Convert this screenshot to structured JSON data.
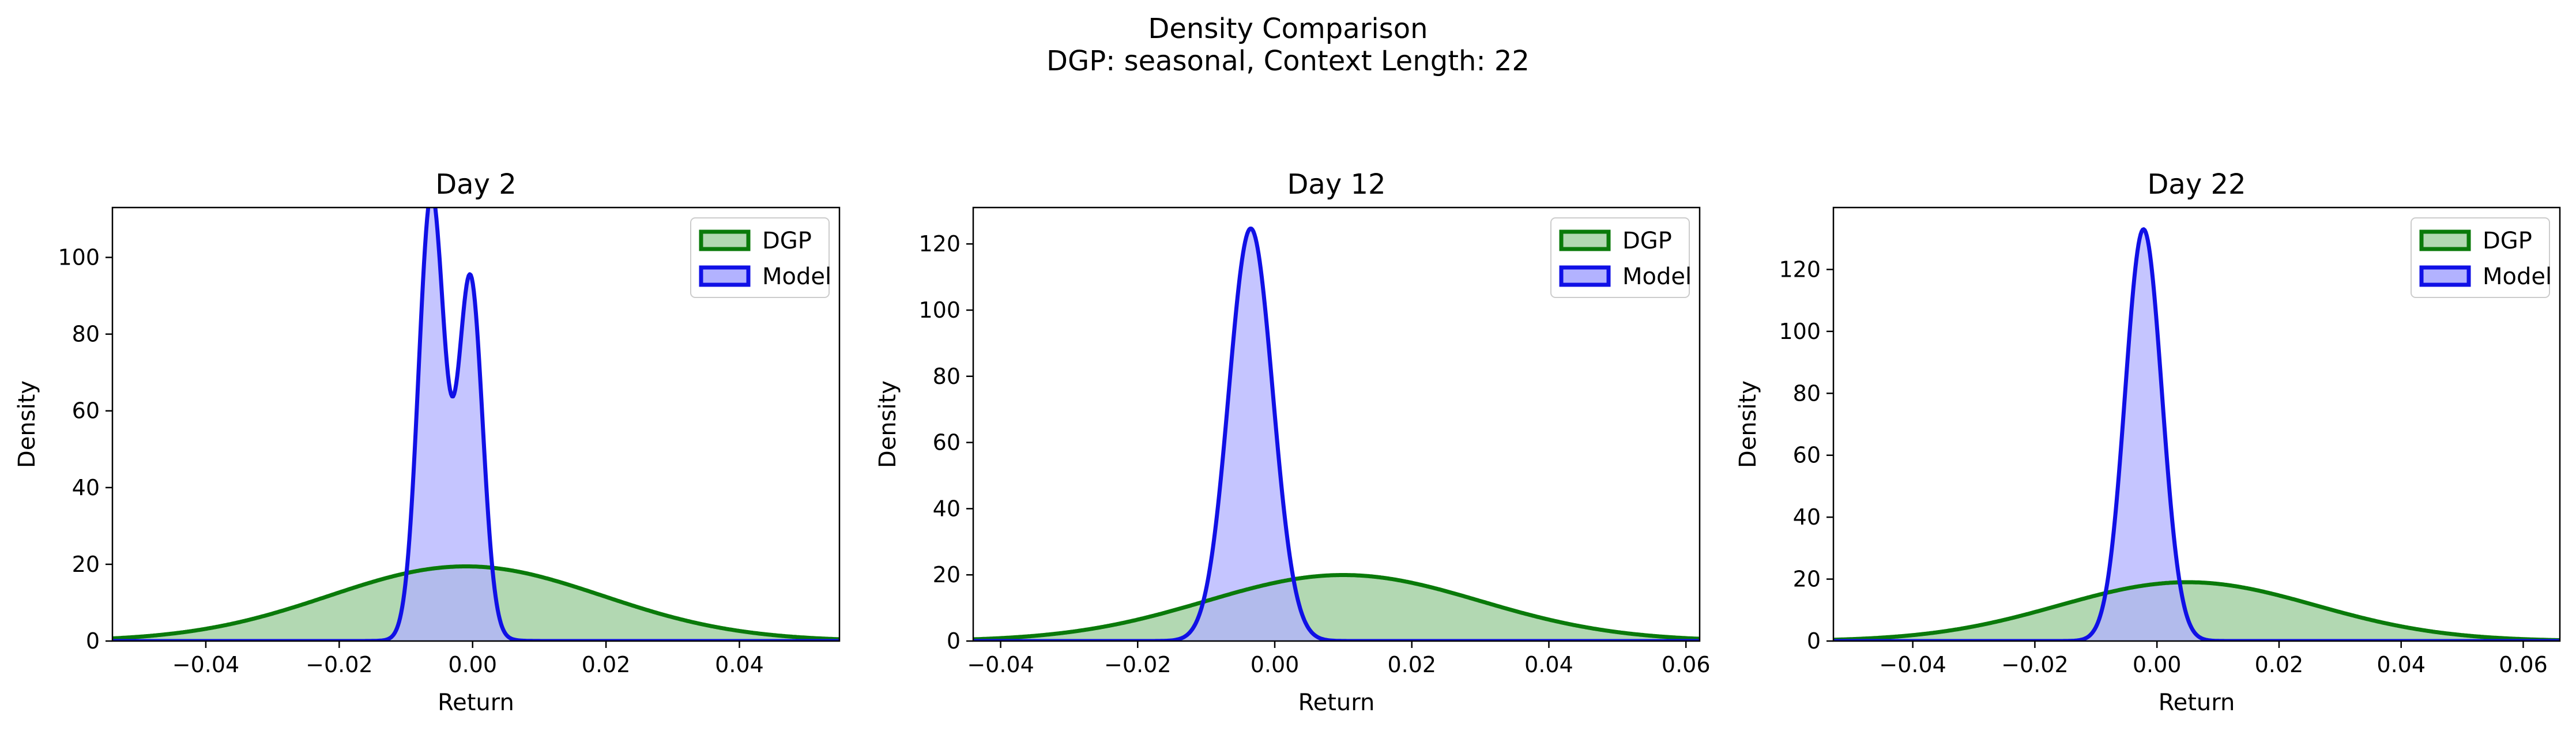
{
  "figure": {
    "title_line1": "Density Comparison",
    "title_line2": "DGP: seasonal, Context Length: 22"
  },
  "colors": {
    "dgp_line": "#0a7a0a",
    "dgp_fill": "#b2d8b2",
    "model_line": "#1010e6",
    "model_fill": "#b2b2ff",
    "overlap_fill": "#7a8fc8"
  },
  "chart_data": [
    {
      "type": "area",
      "title": "Day 2",
      "xlabel": "Return",
      "ylabel": "Density",
      "xlim": [
        -0.054,
        0.055
      ],
      "ylim": [
        0,
        113
      ],
      "xticks": [
        -0.04,
        -0.02,
        0.0,
        0.02,
        0.04
      ],
      "xtick_labels": [
        "−0.04",
        "−0.02",
        "0.00",
        "0.02",
        "0.04"
      ],
      "yticks": [
        0,
        20,
        40,
        60,
        80,
        100
      ],
      "legend": {
        "position": "top-right",
        "entries": [
          "DGP",
          "Model"
        ]
      },
      "series": [
        {
          "name": "DGP",
          "kind": "mixture",
          "components": [
            {
              "mean": -0.001,
              "sd": 0.0205,
              "weight": 1.0
            }
          ]
        },
        {
          "name": "Model",
          "kind": "mixture",
          "components": [
            {
              "mean": -0.0062,
              "sd": 0.0019,
              "weight": 0.53
            },
            {
              "mean": -0.0003,
              "sd": 0.0018,
              "weight": 0.4
            },
            {
              "mean": -0.003,
              "sd": 0.0035,
              "weight": 0.07
            }
          ]
        }
      ]
    },
    {
      "type": "area",
      "title": "Day 12",
      "xlabel": "Return",
      "ylabel": "Density",
      "xlim": [
        -0.044,
        0.062
      ],
      "ylim": [
        0,
        131
      ],
      "xticks": [
        -0.04,
        -0.02,
        0.0,
        0.02,
        0.04,
        0.06
      ],
      "xtick_labels": [
        "−0.04",
        "−0.02",
        "0.00",
        "0.02",
        "0.04",
        "0.06"
      ],
      "yticks": [
        0,
        20,
        40,
        60,
        80,
        100,
        120
      ],
      "legend": {
        "position": "top-right",
        "entries": [
          "DGP",
          "Model"
        ]
      },
      "series": [
        {
          "name": "DGP",
          "kind": "mixture",
          "components": [
            {
              "mean": 0.01,
              "sd": 0.02,
              "weight": 1.0
            }
          ]
        },
        {
          "name": "Model",
          "kind": "mixture",
          "components": [
            {
              "mean": -0.0035,
              "sd": 0.0032,
              "weight": 1.0
            }
          ]
        }
      ]
    },
    {
      "type": "area",
      "title": "Day 22",
      "xlabel": "Return",
      "ylabel": "Density",
      "xlim": [
        -0.053,
        0.066
      ],
      "ylim": [
        0,
        140
      ],
      "xticks": [
        -0.04,
        -0.02,
        0.0,
        0.02,
        0.04,
        0.06
      ],
      "xtick_labels": [
        "−0.04",
        "−0.02",
        "0.00",
        "0.02",
        "0.04",
        "0.06"
      ],
      "yticks": [
        0,
        20,
        40,
        60,
        80,
        100,
        120
      ],
      "legend": {
        "position": "top-right",
        "entries": [
          "DGP",
          "Model"
        ]
      },
      "series": [
        {
          "name": "DGP",
          "kind": "mixture",
          "components": [
            {
              "mean": 0.005,
              "sd": 0.021,
              "weight": 1.0
            }
          ]
        },
        {
          "name": "Model",
          "kind": "mixture",
          "components": [
            {
              "mean": -0.0022,
              "sd": 0.003,
              "weight": 1.0
            }
          ]
        }
      ]
    }
  ]
}
